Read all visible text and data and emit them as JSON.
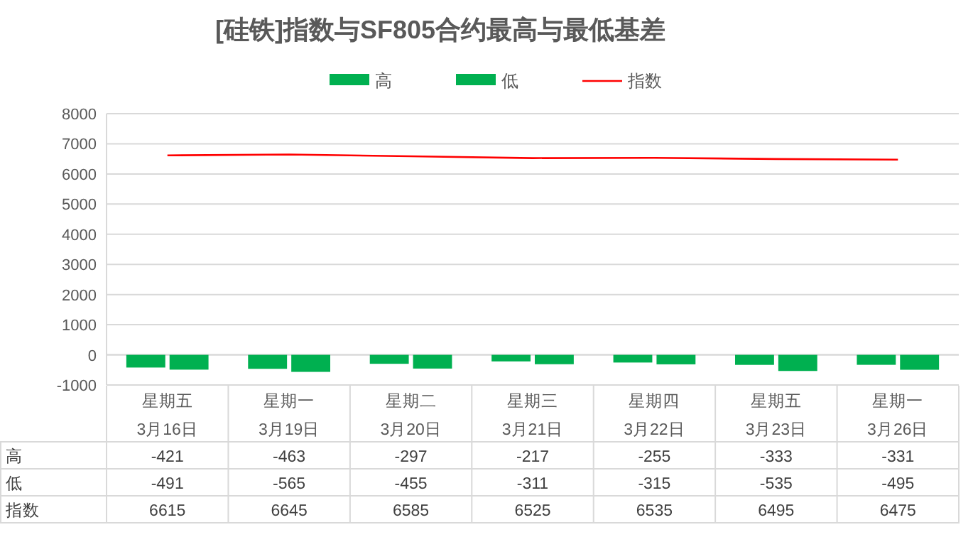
{
  "chart_data": {
    "type": "bar",
    "title": "[硅铁]指数与SF805合约最高与最低基差",
    "categories": [
      "星期五\n3月16日",
      "星期一\n3月19日",
      "星期二\n3月20日",
      "星期三\n3月21日",
      "星期四\n3月22日",
      "星期五\n3月23日",
      "星期一\n3月26日"
    ],
    "series": [
      {
        "name": "高",
        "color": "#00b050",
        "values": [
          -421,
          -463,
          -297,
          -217,
          -255,
          -333,
          -331
        ]
      },
      {
        "name": "低",
        "color": "#00b050",
        "values": [
          -491,
          -565,
          -455,
          -311,
          -315,
          -535,
          -495
        ]
      },
      {
        "name": "指数",
        "type": "line",
        "color": "#ff0000",
        "values": [
          6615,
          6645,
          6585,
          6525,
          6535,
          6495,
          6475
        ]
      }
    ],
    "ylim": [
      -1000,
      8000
    ],
    "yticks": [
      -1000,
      0,
      1000,
      2000,
      3000,
      4000,
      5000,
      6000,
      7000,
      8000
    ],
    "grid": "y",
    "legend": "top",
    "data_labels": true
  }
}
